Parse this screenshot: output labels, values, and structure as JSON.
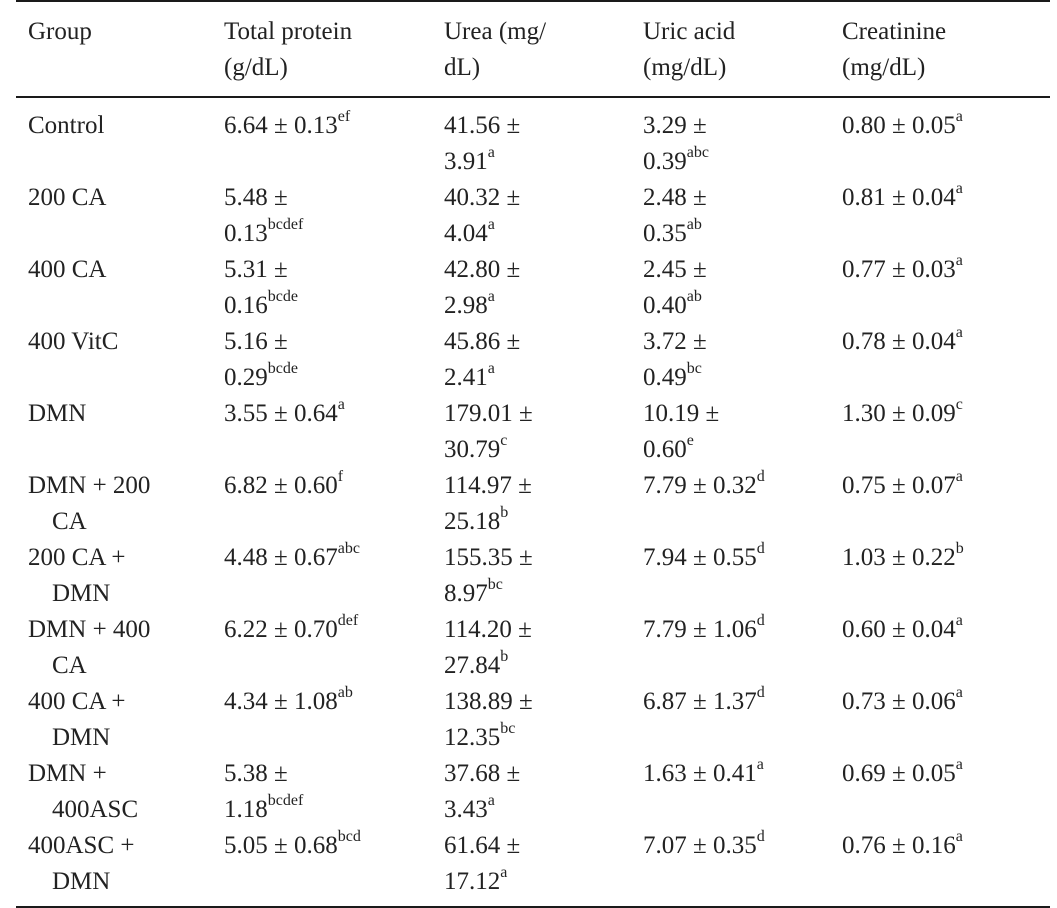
{
  "table": {
    "headers": [
      {
        "line1": "Group",
        "line2": ""
      },
      {
        "line1": "Total protein",
        "line2": "(g/dL)"
      },
      {
        "line1": "Urea (mg/",
        "line2": "dL)"
      },
      {
        "line1": "Uric acid",
        "line2": "(mg/dL)"
      },
      {
        "line1": "Creatinine",
        "line2": "(mg/dL)"
      }
    ],
    "rows": [
      {
        "group": [
          "Control",
          ""
        ],
        "cells": [
          {
            "l1": "6.64 ± 0.13",
            "s1": "ef",
            "l2": "",
            "s2": ""
          },
          {
            "l1": "41.56 ±",
            "s1": "",
            "l2": "3.91",
            "s2": "a"
          },
          {
            "l1": "3.29 ±",
            "s1": "",
            "l2": "0.39",
            "s2": "abc"
          },
          {
            "l1": "0.80 ± 0.05",
            "s1": "a",
            "l2": "",
            "s2": ""
          }
        ]
      },
      {
        "group": [
          "200 CA",
          ""
        ],
        "cells": [
          {
            "l1": "5.48 ±",
            "s1": "",
            "l2": "0.13",
            "s2": "bcdef"
          },
          {
            "l1": "40.32 ±",
            "s1": "",
            "l2": "4.04",
            "s2": "a"
          },
          {
            "l1": "2.48 ±",
            "s1": "",
            "l2": "0.35",
            "s2": "ab"
          },
          {
            "l1": "0.81 ± 0.04",
            "s1": "a",
            "l2": "",
            "s2": ""
          }
        ]
      },
      {
        "group": [
          "400 CA",
          ""
        ],
        "cells": [
          {
            "l1": "5.31 ±",
            "s1": "",
            "l2": "0.16",
            "s2": "bcde"
          },
          {
            "l1": "42.80 ±",
            "s1": "",
            "l2": "2.98",
            "s2": "a"
          },
          {
            "l1": "2.45 ±",
            "s1": "",
            "l2": "0.40",
            "s2": "ab"
          },
          {
            "l1": "0.77 ± 0.03",
            "s1": "a",
            "l2": "",
            "s2": ""
          }
        ]
      },
      {
        "group": [
          "400 VitC",
          ""
        ],
        "cells": [
          {
            "l1": "5.16 ±",
            "s1": "",
            "l2": "0.29",
            "s2": "bcde"
          },
          {
            "l1": "45.86 ±",
            "s1": "",
            "l2": "2.41",
            "s2": "a"
          },
          {
            "l1": "3.72 ±",
            "s1": "",
            "l2": "0.49",
            "s2": "bc"
          },
          {
            "l1": "0.78 ± 0.04",
            "s1": "a",
            "l2": "",
            "s2": ""
          }
        ]
      },
      {
        "group": [
          "DMN",
          ""
        ],
        "cells": [
          {
            "l1": "3.55 ± 0.64",
            "s1": "a",
            "l2": "",
            "s2": ""
          },
          {
            "l1": "179.01 ±",
            "s1": "",
            "l2": "30.79",
            "s2": "c"
          },
          {
            "l1": "10.19 ±",
            "s1": "",
            "l2": "0.60",
            "s2": "e"
          },
          {
            "l1": "1.30 ± 0.09",
            "s1": "c",
            "l2": "",
            "s2": ""
          }
        ]
      },
      {
        "group": [
          "DMN + 200",
          "CA"
        ],
        "cells": [
          {
            "l1": "6.82 ± 0.60",
            "s1": "f",
            "l2": "",
            "s2": ""
          },
          {
            "l1": "114.97 ±",
            "s1": "",
            "l2": "25.18",
            "s2": "b"
          },
          {
            "l1": "7.79 ± 0.32",
            "s1": "d",
            "l2": "",
            "s2": ""
          },
          {
            "l1": "0.75 ± 0.07",
            "s1": "a",
            "l2": "",
            "s2": ""
          }
        ]
      },
      {
        "group": [
          "200 CA +",
          "DMN"
        ],
        "cells": [
          {
            "l1": "4.48 ± 0.67",
            "s1": "abc",
            "l2": "",
            "s2": ""
          },
          {
            "l1": "155.35 ±",
            "s1": "",
            "l2": "8.97",
            "s2": "bc"
          },
          {
            "l1": "7.94 ± 0.55",
            "s1": "d",
            "l2": "",
            "s2": ""
          },
          {
            "l1": "1.03 ± 0.22",
            "s1": "b",
            "l2": "",
            "s2": ""
          }
        ]
      },
      {
        "group": [
          "DMN + 400",
          "CA"
        ],
        "cells": [
          {
            "l1": "6.22 ± 0.70",
            "s1": "def",
            "l2": "",
            "s2": ""
          },
          {
            "l1": "114.20 ±",
            "s1": "",
            "l2": "27.84",
            "s2": "b"
          },
          {
            "l1": "7.79 ± 1.06",
            "s1": "d",
            "l2": "",
            "s2": ""
          },
          {
            "l1": "0.60 ± 0.04",
            "s1": "a",
            "l2": "",
            "s2": ""
          }
        ]
      },
      {
        "group": [
          "400 CA +",
          "DMN"
        ],
        "cells": [
          {
            "l1": "4.34 ± 1.08",
            "s1": "ab",
            "l2": "",
            "s2": ""
          },
          {
            "l1": "138.89 ±",
            "s1": "",
            "l2": "12.35",
            "s2": "bc"
          },
          {
            "l1": "6.87 ± 1.37",
            "s1": "d",
            "l2": "",
            "s2": ""
          },
          {
            "l1": "0.73 ± 0.06",
            "s1": "a",
            "l2": "",
            "s2": ""
          }
        ]
      },
      {
        "group": [
          "DMN +",
          "400ASC"
        ],
        "cells": [
          {
            "l1": "5.38 ±",
            "s1": "",
            "l2": "1.18",
            "s2": "bcdef"
          },
          {
            "l1": "37.68 ±",
            "s1": "",
            "l2": "3.43",
            "s2": "a"
          },
          {
            "l1": "1.63 ± 0.41",
            "s1": "a",
            "l2": "",
            "s2": ""
          },
          {
            "l1": "0.69 ± 0.05",
            "s1": "a",
            "l2": "",
            "s2": ""
          }
        ]
      },
      {
        "group": [
          "400ASC +",
          "DMN"
        ],
        "cells": [
          {
            "l1": "5.05 ± 0.68",
            "s1": "bcd",
            "l2": "",
            "s2": ""
          },
          {
            "l1": "61.64 ±",
            "s1": "",
            "l2": "17.12",
            "s2": "a"
          },
          {
            "l1": "7.07 ± 0.35",
            "s1": "d",
            "l2": "",
            "s2": ""
          },
          {
            "l1": "0.76 ± 0.16",
            "s1": "a",
            "l2": "",
            "s2": ""
          }
        ]
      }
    ]
  }
}
